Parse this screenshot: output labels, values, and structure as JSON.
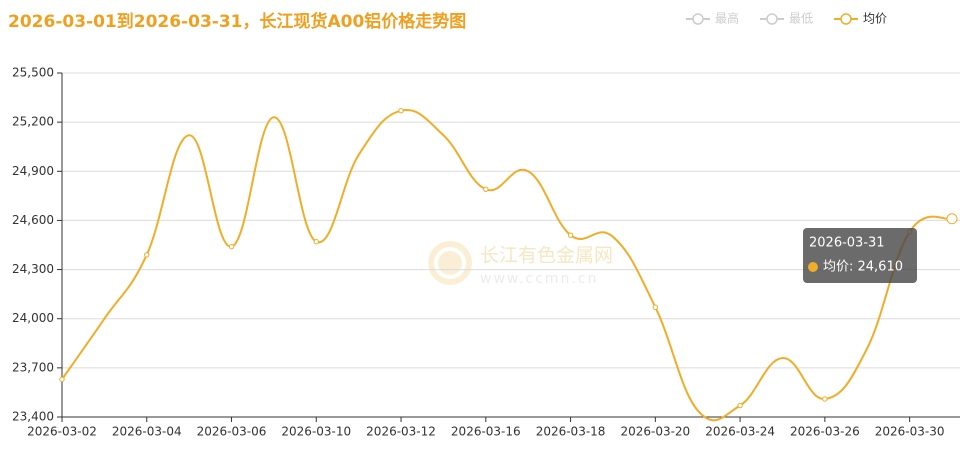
{
  "chart_data": {
    "type": "line",
    "title": "2026-03-01到2026-03-31，长江现货A00铝价格走势图",
    "legend": [
      {
        "name": "最高",
        "active": false
      },
      {
        "name": "最低",
        "active": false
      },
      {
        "name": "均价",
        "active": true
      }
    ],
    "categories": [
      "2026-03-02",
      null,
      "2026-03-04",
      null,
      "2026-03-06",
      null,
      "2026-03-10",
      null,
      "2026-03-12",
      null,
      "2026-03-16",
      null,
      "2026-03-18",
      null,
      "2026-03-20",
      null,
      "2026-03-24",
      null,
      "2026-03-26",
      null,
      "2026-03-30",
      null
    ],
    "series": [
      {
        "name": "均价",
        "color": "#f0ad28",
        "values": [
          23630,
          24000,
          24390,
          25120,
          24440,
          25230,
          24470,
          25000,
          25270,
          25120,
          24790,
          24900,
          24510,
          24500,
          24070,
          23440,
          23470,
          23760,
          23510,
          23820,
          24530,
          24610
        ]
      }
    ],
    "ylim": [
      23400,
      25500
    ],
    "yticks": [
      {
        "value": 23400,
        "label": "23,400"
      },
      {
        "value": 23700,
        "label": "23,700"
      },
      {
        "value": 24000,
        "label": "24,000"
      },
      {
        "value": 24300,
        "label": "24,300"
      },
      {
        "value": 24600,
        "label": "24,600"
      },
      {
        "value": 24900,
        "label": "24,900"
      },
      {
        "value": 25200,
        "label": "25,200"
      },
      {
        "value": 25500,
        "label": "25,500"
      }
    ],
    "grid": true,
    "watermark": {
      "name": "长江有色金属网",
      "url": "www.ccmn.cn"
    },
    "tooltip": {
      "title": "2026-03-31",
      "text": "均价: 24,610"
    }
  }
}
